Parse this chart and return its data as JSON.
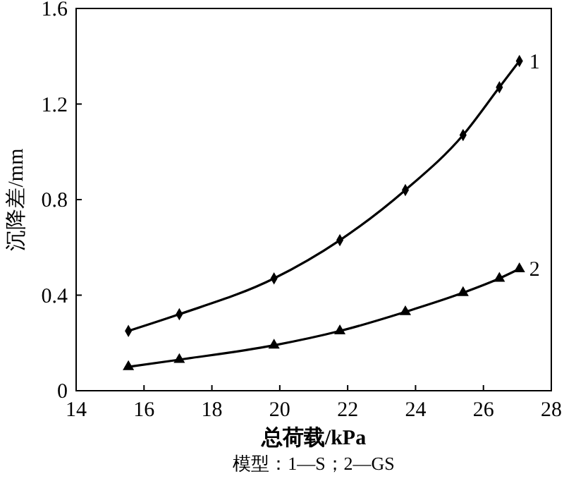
{
  "chart_data": {
    "type": "line",
    "xlabel": "总荷载/kPa",
    "ylabel": "沉降差/mm",
    "annotations": [
      "模型：1—S；2—GS"
    ],
    "xlim": [
      14,
      28
    ],
    "xticks": [
      14,
      16,
      18,
      20,
      22,
      24,
      26,
      28
    ],
    "ylim": [
      0,
      1.6
    ],
    "yticks": [
      0,
      0.4,
      0.8,
      1.2,
      1.6
    ],
    "grid": false,
    "legend": false,
    "line_style": "solid",
    "x": [
      15.54,
      17.04,
      19.83,
      21.77,
      23.7,
      25.4,
      26.47,
      27.06
    ],
    "series": [
      {
        "name": "1",
        "color": "#000000",
        "marker": "diamond",
        "values": [
          0.25,
          0.32,
          0.47,
          0.63,
          0.84,
          1.07,
          1.27,
          1.38
        ]
      },
      {
        "name": "2",
        "color": "#000000",
        "marker": "triangle",
        "values": [
          0.1,
          0.13,
          0.19,
          0.25,
          0.33,
          0.41,
          0.47,
          0.51
        ]
      }
    ]
  }
}
